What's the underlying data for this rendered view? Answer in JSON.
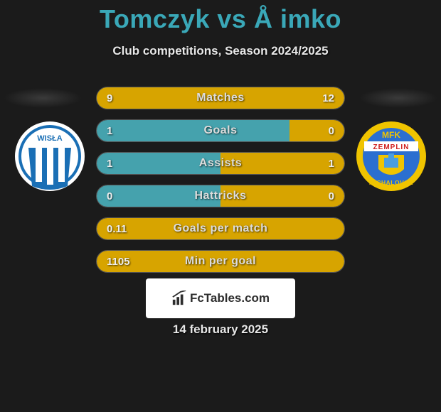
{
  "title": "Tomczyk vs Å imko",
  "subtitle": "Club competitions, Season 2024/2025",
  "date": "14 february 2025",
  "brand": "FcTables.com",
  "colors": {
    "accent_left": "#45a2ad",
    "accent_right": "#d7a400",
    "bar_bg": "#3a3a3a",
    "background": "#1b1b1b",
    "title_color": "#3aa8b8"
  },
  "logos": {
    "left": {
      "name": "wisla-plock-crest",
      "outer": "#ffffff",
      "stripe1": "#1a6fb5",
      "stripe2": "#ffffff",
      "text": "WISŁA"
    },
    "right": {
      "name": "mfk-zemplin-michalovce-crest",
      "outer": "#f0c400",
      "inner": "#2b6fd0",
      "band": "#ffffff",
      "top_text": "MFK",
      "mid_text": "ZEMPLIN",
      "bot_text": "MICHALOVCE"
    }
  },
  "stats": [
    {
      "label": "Matches",
      "left_val": "9",
      "right_val": "12",
      "left_pct": 40,
      "right_pct": 100,
      "left_color": "#45a2ad",
      "right_color": "#d7a400"
    },
    {
      "label": "Goals",
      "left_val": "1",
      "right_val": "0",
      "left_pct": 78,
      "right_pct": 22,
      "left_color": "#45a2ad",
      "right_color": "#d7a400"
    },
    {
      "label": "Assists",
      "left_val": "1",
      "right_val": "1",
      "left_pct": 50,
      "right_pct": 50,
      "left_color": "#45a2ad",
      "right_color": "#d7a400"
    },
    {
      "label": "Hattricks",
      "left_val": "0",
      "right_val": "0",
      "left_pct": 50,
      "right_pct": 50,
      "left_color": "#45a2ad",
      "right_color": "#d7a400"
    },
    {
      "label": "Goals per match",
      "left_val": "0.11",
      "right_val": "",
      "left_pct": 100,
      "right_pct": 0,
      "left_color": "#d7a400",
      "right_color": "#d7a400",
      "full": true
    },
    {
      "label": "Min per goal",
      "left_val": "1105",
      "right_val": "",
      "left_pct": 100,
      "right_pct": 0,
      "left_color": "#d7a400",
      "right_color": "#d7a400",
      "full": true
    }
  ]
}
